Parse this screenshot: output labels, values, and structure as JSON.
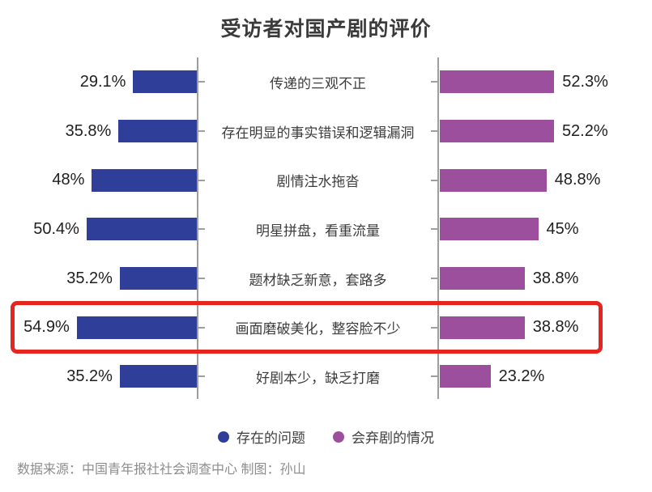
{
  "title": "受访者对国产剧的评价",
  "colors": {
    "left_bar": "#2F3E99",
    "right_bar": "#9C4F9D",
    "axis": "#9E9E9E",
    "highlight_box": "#E5261F",
    "title_text": "#3A3A3A",
    "source_text": "#8D8D8D"
  },
  "legend": [
    {
      "label": "存在的问题",
      "color": "#2F3E99",
      "icon": "circle-dot-blue"
    },
    {
      "label": "会弃剧的情况",
      "color": "#9C4F9D",
      "icon": "circle-dot-purple"
    }
  ],
  "source": "数据来源：中国青年报社社会调查中心 制图：孙山",
  "chart_data": {
    "type": "bar",
    "orientation": "horizontal-bilateral",
    "title": "受访者对国产剧的评价",
    "categories": [
      "传递的三观不正",
      "存在明显的事实错误和逻辑漏洞",
      "剧情注水拖沓",
      "明星拼盘，看重流量",
      "题材缺乏新意，套路多",
      "画面磨破美化，整容脸不少",
      "好剧本少，缺乏打磨"
    ],
    "series": [
      {
        "name": "存在的问题",
        "side": "left",
        "color": "#2F3E99",
        "values": [
          29.1,
          35.8,
          48,
          50.4,
          35.2,
          54.9,
          35.2
        ],
        "labels": [
          "29.1%",
          "35.8%",
          "48%",
          "50.4%",
          "35.2%",
          "54.9%",
          "35.2%"
        ]
      },
      {
        "name": "会弃剧的情况",
        "side": "right",
        "color": "#9C4F9D",
        "values": [
          52.3,
          52.2,
          48.8,
          45,
          38.8,
          38.8,
          23.2
        ],
        "labels": [
          "52.3%",
          "52.2%",
          "48.8%",
          "45%",
          "38.8%",
          "38.8%",
          "23.2%"
        ]
      }
    ],
    "highlight": {
      "row_index": 5,
      "box_color": "#E5261F"
    },
    "value_axis_range": [
      0,
      60
    ],
    "grid": false,
    "legend_position": "bottom"
  }
}
